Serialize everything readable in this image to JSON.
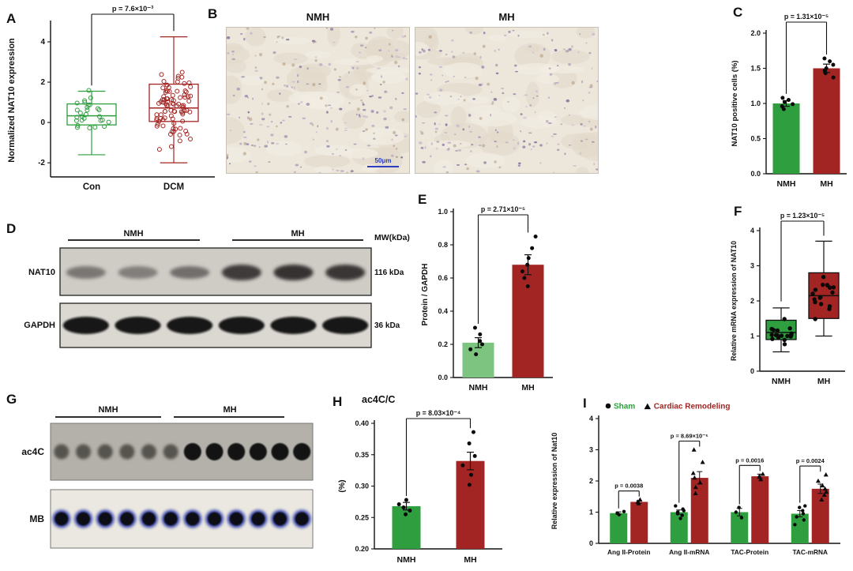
{
  "panel_labels": {
    "A": "A",
    "B": "B",
    "C": "C",
    "D": "D",
    "E": "E",
    "F": "F",
    "G": "G",
    "H": "H",
    "I": "I"
  },
  "colors": {
    "green": "#2e9e3e",
    "light_green": "#7cc47f",
    "dark_red": "#a32523",
    "black": "#0a0a0a",
    "scalebar_blue": "#2b3fc0"
  },
  "panel_b": {
    "images": [
      {
        "label": "NMH"
      },
      {
        "label": "MH"
      }
    ],
    "scale_bar": "50μm"
  },
  "panel_d": {
    "group_labels": [
      "NMH",
      "MH"
    ],
    "row_labels": [
      "NAT10",
      "GAPDH"
    ],
    "mw_header": "MW(kDa)",
    "mw_labels": [
      "116 kDa",
      "36 kDa"
    ]
  },
  "panel_g": {
    "group_labels": [
      "NMH",
      "MH"
    ],
    "row_labels": [
      "ac4C",
      "MB"
    ]
  },
  "chart_data": [
    {
      "id": "A",
      "type": "box-scatter",
      "ylabel": "Normalized NAT10 expression",
      "ylim": [
        -2.7,
        4.9
      ],
      "yticks": [
        "-2",
        "0",
        "2",
        "4"
      ],
      "p_label": "p = 7.6×10⁻³",
      "series": [
        {
          "name": "Con",
          "color": "green",
          "n": 28,
          "box": {
            "min": -1.6,
            "q1": -0.12,
            "median": 0.33,
            "q3": 0.92,
            "max": 1.55
          },
          "spread": [
            -1.75,
            1.6
          ]
        },
        {
          "name": "DCM",
          "color": "dark_red",
          "n": 88,
          "box": {
            "min": -2.0,
            "q1": 0.05,
            "median": 0.72,
            "q3": 1.9,
            "max": 4.25
          },
          "spread": [
            -2.05,
            4.3
          ]
        }
      ]
    },
    {
      "id": "C",
      "type": "bar",
      "ylabel": "NAT10 positive cells (%)",
      "ylim": [
        0,
        2
      ],
      "yticks": [
        "0.0",
        "0.5",
        "1.0",
        "1.5",
        "2.0"
      ],
      "p_label": "p = 1.31×10⁻⁵",
      "categories": [
        "NMH",
        "MH"
      ],
      "values": [
        1.0,
        1.5
      ],
      "errors": [
        0.04,
        0.06
      ],
      "colors": [
        "green",
        "dark_red"
      ],
      "points": [
        [
          0.92,
          0.96,
          0.99,
          1.02,
          1.05,
          1.08
        ],
        [
          1.37,
          1.43,
          1.47,
          1.5,
          1.55,
          1.6,
          1.64
        ]
      ]
    },
    {
      "id": "E",
      "type": "bar",
      "ylabel": "Protein / GAPDH",
      "ylim": [
        0,
        1
      ],
      "yticks": [
        "0.0",
        "0.2",
        "0.4",
        "0.6",
        "0.8",
        "1.0"
      ],
      "p_label": "p = 2.71×10⁻⁵",
      "categories": [
        "NMH",
        "MH"
      ],
      "values": [
        0.21,
        0.68
      ],
      "errors": [
        0.03,
        0.06
      ],
      "colors": [
        "light_green",
        "dark_red"
      ],
      "points": [
        [
          0.14,
          0.17,
          0.2,
          0.22,
          0.26,
          0.3
        ],
        [
          0.55,
          0.6,
          0.64,
          0.68,
          0.72,
          0.78,
          0.85
        ]
      ]
    },
    {
      "id": "F",
      "type": "box-scatter",
      "ylabel": "Relative mRNA expression of NAT10",
      "ylim": [
        0,
        4
      ],
      "yticks": [
        "0",
        "1",
        "2",
        "3",
        "4"
      ],
      "p_label": "p = 1.23×10⁻⁵",
      "series": [
        {
          "name": "NMH",
          "color": "green",
          "n": 18,
          "box": {
            "min": 0.55,
            "q1": 0.9,
            "median": 1.1,
            "q3": 1.45,
            "max": 1.8
          },
          "spread": [
            0.5,
            1.85
          ]
        },
        {
          "name": "MH",
          "color": "dark_red",
          "n": 17,
          "box": {
            "min": 1.0,
            "q1": 1.5,
            "median": 2.15,
            "q3": 2.8,
            "max": 3.7
          },
          "spread": [
            1.0,
            3.72
          ]
        }
      ]
    },
    {
      "id": "H",
      "type": "bar",
      "title": "ac4C/C",
      "ylabel": "(%)",
      "ylim": [
        0.2,
        0.4
      ],
      "yticks": [
        "0.20",
        "0.25",
        "0.30",
        "0.35",
        "0.40"
      ],
      "p_label": "p = 8.03×10⁻⁴",
      "categories": [
        "NMH",
        "MH"
      ],
      "values": [
        0.268,
        0.34
      ],
      "errors": [
        0.006,
        0.014
      ],
      "colors": [
        "green",
        "dark_red"
      ],
      "points": [
        [
          0.255,
          0.261,
          0.266,
          0.271,
          0.278
        ],
        [
          0.302,
          0.318,
          0.333,
          0.348,
          0.368,
          0.386
        ]
      ]
    },
    {
      "id": "I",
      "type": "grouped-bar",
      "ylabel": "Relative expression of Nat10",
      "ylim": [
        0,
        4
      ],
      "yticks": [
        "0",
        "1",
        "2",
        "3",
        "4"
      ],
      "categories": [
        "Ang II-Protein",
        "Ang II-mRNA",
        "TAC-Protein",
        "TAC-mRNA"
      ],
      "p_labels": [
        "p = 0.0038",
        "p = 8.69×10⁻⁵",
        "p = 0.0016",
        "p = 0.0024"
      ],
      "series": [
        {
          "name": "Sham",
          "marker": "circle",
          "color": "green",
          "values": [
            0.97,
            1.0,
            1.0,
            0.95
          ],
          "errors": [
            0.04,
            0.07,
            0.12,
            0.1
          ],
          "points": [
            [
              0.92,
              0.97,
              1.02
            ],
            [
              0.8,
              0.9,
              0.95,
              1.0,
              1.05,
              1.1,
              1.2
            ],
            [
              0.82,
              1.0,
              1.15
            ],
            [
              0.6,
              0.75,
              0.85,
              0.95,
              1.05,
              1.15,
              1.2
            ]
          ]
        },
        {
          "name": "Cardiac Remodeling",
          "marker": "triangle",
          "color": "dark_red",
          "values": [
            1.33,
            2.1,
            2.15,
            1.75
          ],
          "errors": [
            0.04,
            0.2,
            0.07,
            0.15
          ],
          "points": [
            [
              1.28,
              1.33,
              1.4
            ],
            [
              1.6,
              1.8,
              1.95,
              2.1,
              2.25,
              2.6,
              3.0
            ],
            [
              2.05,
              2.15,
              2.22
            ],
            [
              1.4,
              1.55,
              1.65,
              1.75,
              1.85,
              2.0,
              2.2
            ]
          ]
        }
      ]
    }
  ]
}
